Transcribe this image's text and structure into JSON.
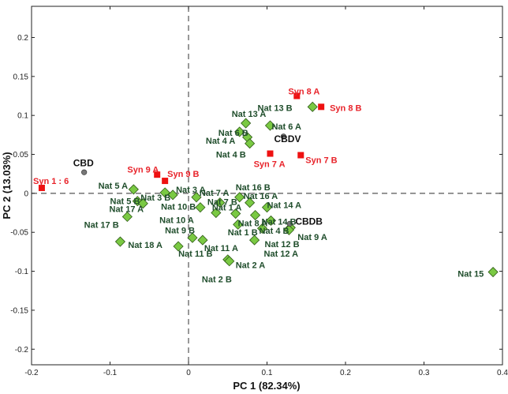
{
  "chart_data": {
    "type": "scatter",
    "xlabel": "PC 1 (82.34%)",
    "ylabel": "PC 2 (13.03%)",
    "xlim": [
      -0.2,
      0.4
    ],
    "ylim": [
      -0.22,
      0.24
    ],
    "xticks": [
      -0.2,
      -0.1,
      0,
      0.1,
      0.2,
      0.3,
      0.4
    ],
    "xtick_labels": [
      "-0.2",
      "-0.1",
      "0",
      "0.1",
      "0.2",
      "0.3",
      "0.4"
    ],
    "yticks": [
      -0.2,
      -0.15,
      -0.1,
      -0.05,
      0,
      0.05,
      0.1,
      0.15,
      0.2
    ],
    "ytick_labels": [
      "-0.2",
      "-0.15",
      "-0.1",
      "-0.05",
      "0",
      "0.05",
      "0.1",
      "0.15",
      "0.2"
    ],
    "grid": false,
    "reference_lines": {
      "x": 0,
      "y": 0,
      "style": "dashed"
    },
    "colors": {
      "natural_fill": "#7ac943",
      "natural_label": "#1f4d2b",
      "synthetic_fill": "#ee1111",
      "synthetic_label": "#e8232a",
      "standard_fill": "#777777",
      "standard_label": "#111111"
    },
    "series": [
      {
        "group": "natural",
        "marker": "diamond",
        "points": [
          {
            "label": "Nat 1 A",
            "x": 0.06,
            "y": -0.026,
            "lx": 0.03,
            "ly": -0.018
          },
          {
            "label": "Nat 1 B",
            "x": 0.063,
            "y": -0.04,
            "lx": 0.05,
            "ly": -0.05
          },
          {
            "label": "Nat 2 A",
            "x": 0.05,
            "y": -0.085,
            "lx": 0.06,
            "ly": -0.092
          },
          {
            "label": "Nat 2 B",
            "x": 0.052,
            "y": -0.087,
            "lx": 0.017,
            "ly": -0.11
          },
          {
            "label": "Nat 3 A",
            "x": -0.02,
            "y": -0.002,
            "lx": -0.016,
            "ly": 0.005
          },
          {
            "label": "Nat 3 B",
            "x": -0.03,
            "y": 0.001,
            "lx": -0.061,
            "ly": -0.005
          },
          {
            "label": "Nat 4 A",
            "x": 0.075,
            "y": 0.072,
            "lx": 0.022,
            "ly": 0.068
          },
          {
            "label": "Nat 4 B",
            "x": 0.078,
            "y": 0.064,
            "lx": 0.035,
            "ly": 0.05
          },
          {
            "label": "Nat 4 B",
            "x": 0.094,
            "y": -0.045,
            "lx": 0.09,
            "ly": -0.048
          },
          {
            "label": "Nat 5 A",
            "x": -0.07,
            "y": 0.005,
            "lx": -0.115,
            "ly": 0.01
          },
          {
            "label": "Nat 5 B",
            "x": -0.065,
            "y": -0.01,
            "lx": -0.1,
            "ly": -0.01
          },
          {
            "label": "Nat 6 A",
            "x": 0.104,
            "y": 0.087,
            "lx": 0.106,
            "ly": 0.086
          },
          {
            "label": "Nat 6 B",
            "x": 0.065,
            "y": 0.079,
            "lx": 0.038,
            "ly": 0.078
          },
          {
            "label": "Nat 7 A",
            "x": 0.01,
            "y": -0.005,
            "lx": 0.014,
            "ly": 0.001
          },
          {
            "label": "Nat 7 B",
            "x": 0.04,
            "y": -0.012,
            "lx": 0.024,
            "ly": -0.011
          },
          {
            "label": "Nat 8 A",
            "x": 0.085,
            "y": -0.028,
            "lx": 0.063,
            "ly": -0.038
          },
          {
            "label": "Nat 9 A",
            "x": 0.13,
            "y": -0.044,
            "lx": 0.139,
            "ly": -0.056
          },
          {
            "label": "Nat 9 B",
            "x": 0.005,
            "y": -0.057,
            "lx": -0.03,
            "ly": -0.047
          },
          {
            "label": "Nat 10 A",
            "x": 0.035,
            "y": -0.025,
            "lx": -0.037,
            "ly": -0.034
          },
          {
            "label": "Nat 10 B",
            "x": 0.015,
            "y": -0.018,
            "lx": -0.035,
            "ly": -0.017
          },
          {
            "label": "Nat 11 A",
            "x": 0.018,
            "y": -0.06,
            "lx": 0.02,
            "ly": -0.07
          },
          {
            "label": "Nat 11 B",
            "x": -0.013,
            "y": -0.068,
            "lx": -0.013,
            "ly": -0.077
          },
          {
            "label": "Nat 12 A",
            "x": 0.128,
            "y": -0.047,
            "lx": 0.096,
            "ly": -0.077
          },
          {
            "label": "Nat 12 B",
            "x": 0.084,
            "y": -0.06,
            "lx": 0.097,
            "ly": -0.065
          },
          {
            "label": "Nat 13 A",
            "x": 0.073,
            "y": 0.09,
            "lx": 0.055,
            "ly": 0.102
          },
          {
            "label": "Nat 13 B",
            "x": 0.158,
            "y": 0.111,
            "lx": 0.088,
            "ly": 0.11
          },
          {
            "label": "Nat 14 A",
            "x": 0.1,
            "y": -0.018,
            "lx": 0.1,
            "ly": -0.015
          },
          {
            "label": "Nat 14 B",
            "x": 0.105,
            "y": -0.035,
            "lx": 0.093,
            "ly": -0.036
          },
          {
            "label": "Nat 15",
            "x": 0.388,
            "y": -0.101,
            "lx": 0.343,
            "ly": -0.103
          },
          {
            "label": "Nat 16 A",
            "x": 0.078,
            "y": -0.012,
            "lx": 0.07,
            "ly": -0.003
          },
          {
            "label": "Nat 16 B",
            "x": 0.065,
            "y": -0.005,
            "lx": 0.06,
            "ly": 0.008
          },
          {
            "label": "Nat 17 A",
            "x": -0.058,
            "y": -0.013,
            "lx": -0.101,
            "ly": -0.02
          },
          {
            "label": "Nat 17 B",
            "x": -0.078,
            "y": -0.03,
            "lx": -0.133,
            "ly": -0.04
          },
          {
            "label": "Nat 18 A",
            "x": -0.087,
            "y": -0.062,
            "lx": -0.077,
            "ly": -0.066
          }
        ]
      },
      {
        "group": "synthetic",
        "marker": "square",
        "points": [
          {
            "label": "Syn 1 : 6",
            "x": -0.187,
            "y": 0.007,
            "lx": -0.198,
            "ly": 0.016
          },
          {
            "label": "Syn 7 A",
            "x": 0.104,
            "y": 0.051,
            "lx": 0.083,
            "ly": 0.038
          },
          {
            "label": "Syn 7 B",
            "x": 0.143,
            "y": 0.049,
            "lx": 0.149,
            "ly": 0.043
          },
          {
            "label": "Syn 8 A",
            "x": 0.138,
            "y": 0.125,
            "lx": 0.127,
            "ly": 0.131
          },
          {
            "label": "Syn 8 B",
            "x": 0.169,
            "y": 0.111,
            "lx": 0.18,
            "ly": 0.11
          },
          {
            "label": "Syn 9 A",
            "x": -0.04,
            "y": 0.024,
            "lx": -0.078,
            "ly": 0.031
          },
          {
            "label": "Syn 9 B",
            "x": -0.03,
            "y": 0.016,
            "lx": -0.027,
            "ly": 0.025
          }
        ]
      },
      {
        "group": "standard",
        "marker": "circle",
        "points": [
          {
            "label": "CBD",
            "x": -0.133,
            "y": 0.027,
            "lx": -0.147,
            "ly": 0.039
          },
          {
            "label": "CBDV",
            "x": 0.121,
            "y": 0.073,
            "lx": 0.109,
            "ly": 0.07
          },
          {
            "label": "CBDB",
            "x": 0.129,
            "y": -0.039,
            "lx": 0.136,
            "ly": -0.036
          }
        ]
      }
    ]
  }
}
